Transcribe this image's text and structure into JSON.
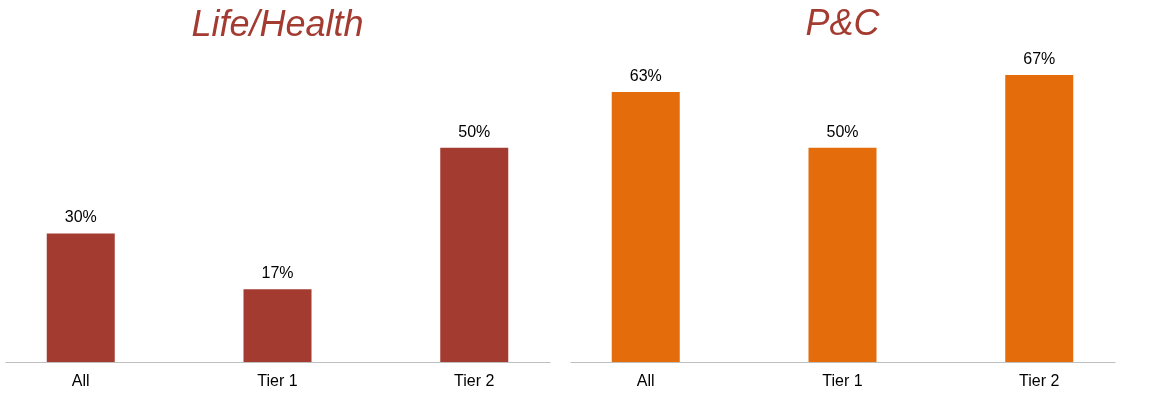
{
  "chart_data": [
    {
      "type": "bar",
      "title": "Life/Health",
      "categories": [
        "All",
        "Tier 1",
        "Tier 2"
      ],
      "values": [
        30,
        17,
        50
      ],
      "color": "#a33b31",
      "value_labels": [
        "30%",
        "17%",
        "50%"
      ],
      "grid": false,
      "legend": false
    },
    {
      "type": "bar",
      "title": "P&C",
      "categories": [
        "All",
        "Tier 1",
        "Tier 2"
      ],
      "values": [
        63,
        50,
        67
      ],
      "color": "#e46c0a",
      "value_labels": [
        "63%",
        "50%",
        "67%"
      ],
      "grid": false,
      "legend": false
    }
  ]
}
